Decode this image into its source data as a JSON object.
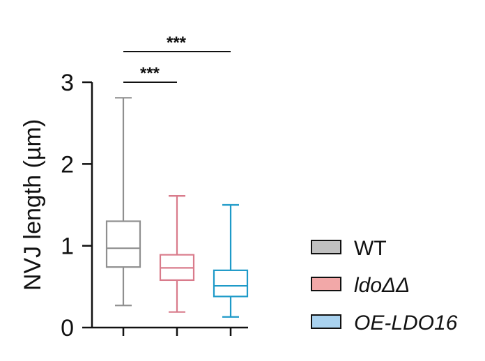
{
  "chart_data": {
    "type": "box",
    "title": "",
    "xlabel": "",
    "ylabel": "NVJ length (µm)",
    "ylim": [
      0,
      3
    ],
    "yticks": [
      "0",
      "1",
      "2",
      "3"
    ],
    "grid": false,
    "legend_position": "right",
    "series": [
      {
        "name": "WT",
        "min": 0.27,
        "q1": 0.74,
        "median": 0.97,
        "q3": 1.3,
        "max": 2.81,
        "color": "#8f8f8f",
        "fill": "#c0c0c0"
      },
      {
        "name": "ldoΔΔ",
        "min": 0.19,
        "q1": 0.58,
        "median": 0.73,
        "q3": 0.89,
        "max": 1.61,
        "color": "#d97b8b",
        "fill": "#f2a8a8"
      },
      {
        "name": "OE-LDO16",
        "min": 0.13,
        "q1": 0.38,
        "median": 0.51,
        "q3": 0.7,
        "max": 1.5,
        "color": "#1e9ac8",
        "fill": "#a9d2ef"
      }
    ],
    "significance": [
      {
        "from": 0,
        "to": 1,
        "label": "***"
      },
      {
        "from": 0,
        "to": 2,
        "label": "***"
      }
    ]
  }
}
